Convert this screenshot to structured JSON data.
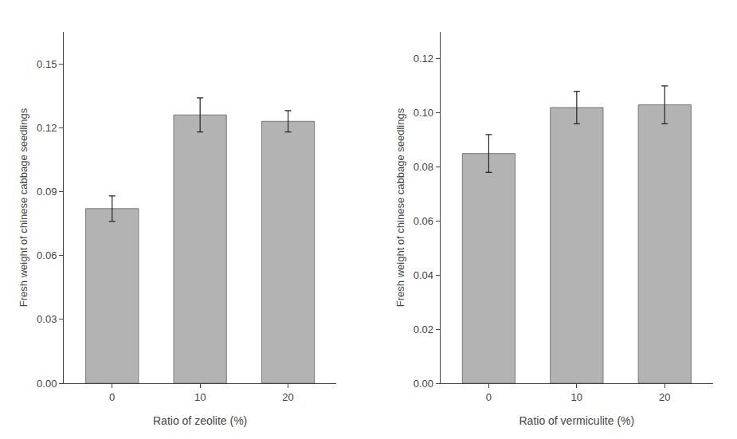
{
  "chart_data": [
    {
      "type": "bar",
      "categories": [
        "0",
        "10",
        "20"
      ],
      "values": [
        0.082,
        0.126,
        0.123
      ],
      "errors": [
        0.006,
        0.008,
        0.005
      ],
      "color": "#b3b3b3",
      "xlabel": "Ratio of zeolite (%)",
      "ylabel": "Fresh weight of chinese cabbage seedlings",
      "ylim": [
        0,
        0.165
      ],
      "yticks": [
        {
          "value": 0.0,
          "label": "0.00"
        },
        0.03,
        0.06,
        0.09,
        0.12,
        0.15
      ],
      "grid": false
    },
    {
      "type": "bar",
      "categories": [
        "0",
        "10",
        "20"
      ],
      "values": [
        0.085,
        0.102,
        0.103
      ],
      "errors": [
        0.007,
        0.006,
        0.007
      ],
      "color": "#b3b3b3",
      "xlabel": "Ratio of vermiculite (%)",
      "ylabel": "Fresh weight of chinese cabbage seedlings",
      "ylim": [
        0,
        0.13
      ],
      "yticks": [
        {
          "value": 0.0,
          "label": "0.00"
        },
        0.02,
        0.04,
        0.06,
        0.08,
        {
          "value": 0.1,
          "label": "0.10"
        },
        0.12
      ],
      "grid": false
    }
  ]
}
